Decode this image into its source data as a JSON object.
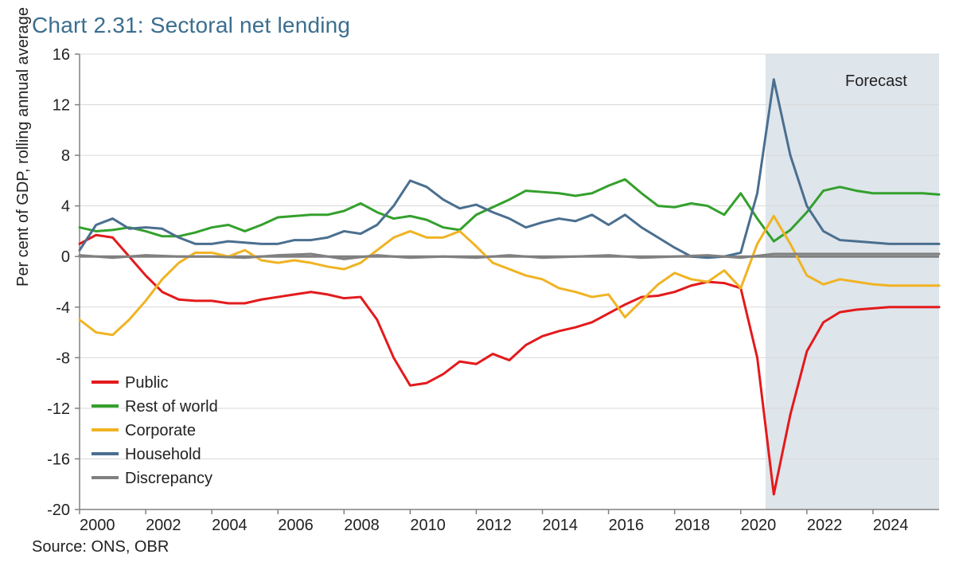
{
  "title": "Chart 2.31: Sectoral net lending",
  "ylabel": "Per cent of GDP, rolling annual average",
  "source": "Source: ONS, OBR",
  "forecast_label": "Forecast",
  "chart": {
    "type": "line",
    "background_color": "#ffffff",
    "grid_color": "#d9d9d9",
    "axis_color": "#808080",
    "zero_line_color": "#808080",
    "forecast_band": {
      "fill": "#c3d0da",
      "opacity": 0.55,
      "x_start": 2020.75,
      "x_end": 2026
    },
    "xlim": [
      2000,
      2026
    ],
    "ylim": [
      -20,
      16
    ],
    "ytick_step": 4,
    "yticks": [
      -20,
      -16,
      -12,
      -8,
      -4,
      0,
      4,
      8,
      12,
      16
    ],
    "xticks": [
      2000,
      2002,
      2004,
      2006,
      2008,
      2010,
      2012,
      2014,
      2016,
      2018,
      2020,
      2022,
      2024
    ],
    "line_width": 3,
    "title_fontsize": 28,
    "label_fontsize": 20,
    "tick_fontsize": 20,
    "title_color": "#3b6e8f",
    "legend": {
      "position": "lower-left",
      "items": [
        {
          "label": "Public",
          "color": "#e31a1c"
        },
        {
          "label": "Rest of world",
          "color": "#33a02c"
        },
        {
          "label": "Corporate",
          "color": "#f0b323"
        },
        {
          "label": "Household",
          "color": "#4a6f8f"
        },
        {
          "label": "Discrepancy",
          "color": "#808080"
        }
      ]
    },
    "series": [
      {
        "name": "Public",
        "color": "#e31a1c",
        "x": [
          2000,
          2000.5,
          2001,
          2001.5,
          2002,
          2002.5,
          2003,
          2003.5,
          2004,
          2004.5,
          2005,
          2005.5,
          2006,
          2006.5,
          2007,
          2007.5,
          2008,
          2008.5,
          2009,
          2009.5,
          2010,
          2010.5,
          2011,
          2011.5,
          2012,
          2012.5,
          2013,
          2013.5,
          2014,
          2014.5,
          2015,
          2015.5,
          2016,
          2016.5,
          2017,
          2017.5,
          2018,
          2018.5,
          2019,
          2019.5,
          2020,
          2020.5,
          2021,
          2021.5,
          2022,
          2022.5,
          2023,
          2023.5,
          2024,
          2024.5,
          2025,
          2025.5,
          2026
        ],
        "y": [
          1.0,
          1.7,
          1.5,
          0.0,
          -1.5,
          -2.8,
          -3.4,
          -3.5,
          -3.5,
          -3.7,
          -3.7,
          -3.4,
          -3.2,
          -3.0,
          -2.8,
          -3.0,
          -3.3,
          -3.2,
          -5.0,
          -8.0,
          -10.2,
          -10.0,
          -9.3,
          -8.3,
          -8.5,
          -7.7,
          -8.2,
          -7.0,
          -6.3,
          -5.9,
          -5.6,
          -5.2,
          -4.5,
          -3.8,
          -3.2,
          -3.1,
          -2.8,
          -2.3,
          -2.0,
          -2.1,
          -2.5,
          -8.0,
          -18.8,
          -12.5,
          -7.5,
          -5.2,
          -4.4,
          -4.2,
          -4.1,
          -4.0,
          -4.0,
          -4.0,
          -4.0
        ]
      },
      {
        "name": "Rest of world",
        "color": "#33a02c",
        "x": [
          2000,
          2000.5,
          2001,
          2001.5,
          2002,
          2002.5,
          2003,
          2003.5,
          2004,
          2004.5,
          2005,
          2005.5,
          2006,
          2006.5,
          2007,
          2007.5,
          2008,
          2008.5,
          2009,
          2009.5,
          2010,
          2010.5,
          2011,
          2011.5,
          2012,
          2012.5,
          2013,
          2013.5,
          2014,
          2014.5,
          2015,
          2015.5,
          2016,
          2016.5,
          2017,
          2017.5,
          2018,
          2018.5,
          2019,
          2019.5,
          2020,
          2020.5,
          2021,
          2021.5,
          2022,
          2022.5,
          2023,
          2023.5,
          2024,
          2024.5,
          2025,
          2025.5,
          2026
        ],
        "y": [
          2.3,
          2.0,
          2.1,
          2.3,
          2.0,
          1.6,
          1.6,
          1.9,
          2.3,
          2.5,
          2.0,
          2.5,
          3.1,
          3.2,
          3.3,
          3.3,
          3.6,
          4.2,
          3.5,
          3.0,
          3.2,
          2.9,
          2.3,
          2.1,
          3.3,
          3.9,
          4.5,
          5.2,
          5.1,
          5.0,
          4.8,
          5.0,
          5.6,
          6.1,
          5.0,
          4.0,
          3.9,
          4.2,
          4.0,
          3.3,
          5.0,
          3.0,
          1.2,
          2.1,
          3.5,
          5.2,
          5.5,
          5.2,
          5.0,
          5.0,
          5.0,
          5.0,
          4.9
        ]
      },
      {
        "name": "Corporate",
        "color": "#f0b323",
        "x": [
          2000,
          2000.5,
          2001,
          2001.5,
          2002,
          2002.5,
          2003,
          2003.5,
          2004,
          2004.5,
          2005,
          2005.5,
          2006,
          2006.5,
          2007,
          2007.5,
          2008,
          2008.5,
          2009,
          2009.5,
          2010,
          2010.5,
          2011,
          2011.5,
          2012,
          2012.5,
          2013,
          2013.5,
          2014,
          2014.5,
          2015,
          2015.5,
          2016,
          2016.5,
          2017,
          2017.5,
          2018,
          2018.5,
          2019,
          2019.5,
          2020,
          2020.5,
          2021,
          2021.5,
          2022,
          2022.5,
          2023,
          2023.5,
          2024,
          2024.5,
          2025,
          2025.5,
          2026
        ],
        "y": [
          -5.0,
          -6.0,
          -6.2,
          -5.0,
          -3.5,
          -1.8,
          -0.5,
          0.3,
          0.3,
          0.0,
          0.5,
          -0.3,
          -0.5,
          -0.3,
          -0.5,
          -0.8,
          -1.0,
          -0.5,
          0.5,
          1.5,
          2.0,
          1.5,
          1.5,
          2.0,
          0.8,
          -0.5,
          -1.0,
          -1.5,
          -1.8,
          -2.5,
          -2.8,
          -3.2,
          -3.0,
          -4.8,
          -3.5,
          -2.2,
          -1.3,
          -1.8,
          -2.0,
          -1.1,
          -2.5,
          1.0,
          3.2,
          1.0,
          -1.5,
          -2.2,
          -1.8,
          -2.0,
          -2.2,
          -2.3,
          -2.3,
          -2.3,
          -2.3
        ]
      },
      {
        "name": "Household",
        "color": "#4a6f8f",
        "x": [
          2000,
          2000.5,
          2001,
          2001.5,
          2002,
          2002.5,
          2003,
          2003.5,
          2004,
          2004.5,
          2005,
          2005.5,
          2006,
          2006.5,
          2007,
          2007.5,
          2008,
          2008.5,
          2009,
          2009.5,
          2010,
          2010.5,
          2011,
          2011.5,
          2012,
          2012.5,
          2013,
          2013.5,
          2014,
          2014.5,
          2015,
          2015.5,
          2016,
          2016.5,
          2017,
          2017.5,
          2018,
          2018.5,
          2019,
          2019.5,
          2020,
          2020.5,
          2021,
          2021.5,
          2022,
          2022.5,
          2023,
          2023.5,
          2024,
          2024.5,
          2025,
          2025.5,
          2026
        ],
        "y": [
          0.5,
          2.5,
          3.0,
          2.2,
          2.3,
          2.2,
          1.5,
          1.0,
          1.0,
          1.2,
          1.1,
          1.0,
          1.0,
          1.3,
          1.3,
          1.5,
          2.0,
          1.8,
          2.5,
          4.0,
          6.0,
          5.5,
          4.5,
          3.8,
          4.1,
          3.5,
          3.0,
          2.3,
          2.7,
          3.0,
          2.8,
          3.3,
          2.5,
          3.3,
          2.3,
          1.5,
          0.7,
          0.0,
          -0.1,
          0.0,
          0.3,
          5.0,
          14.0,
          8.0,
          4.0,
          2.0,
          1.3,
          1.2,
          1.1,
          1.0,
          1.0,
          1.0,
          1.0
        ]
      },
      {
        "name": "Discrepancy",
        "color": "#808080",
        "x": [
          2000,
          2001,
          2002,
          2003,
          2004,
          2005,
          2006,
          2007,
          2008,
          2009,
          2010,
          2011,
          2012,
          2013,
          2014,
          2015,
          2016,
          2017,
          2018,
          2019,
          2020,
          2021,
          2022,
          2023,
          2024,
          2025,
          2026
        ],
        "y": [
          0.1,
          -0.1,
          0.1,
          0.0,
          0.0,
          -0.1,
          0.1,
          0.2,
          -0.2,
          0.1,
          -0.1,
          0.0,
          -0.1,
          0.1,
          -0.1,
          0.0,
          0.1,
          -0.1,
          0.0,
          0.1,
          -0.1,
          0.2,
          0.2,
          0.2,
          0.2,
          0.2,
          0.2
        ]
      }
    ]
  }
}
